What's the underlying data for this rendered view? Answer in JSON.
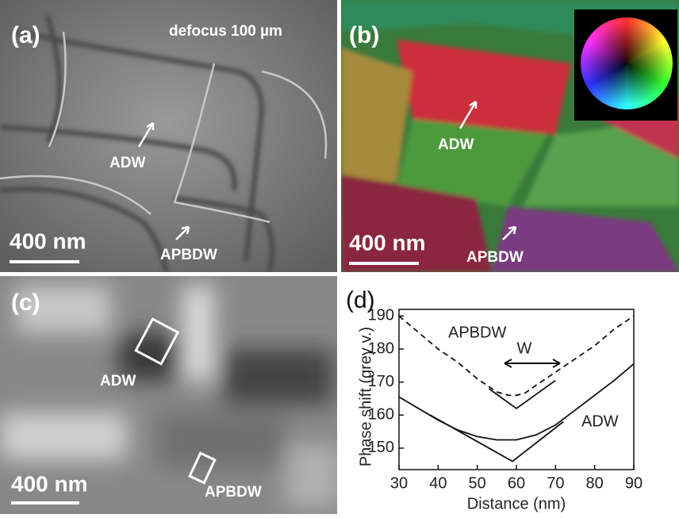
{
  "panels": [
    {
      "label": "(a)",
      "note": "defocus 100 µm",
      "adw": "ADW",
      "apbdw": "APBDW",
      "scale": "400 nm"
    },
    {
      "label": "(b)",
      "adw": "ADW",
      "apbdw": "APBDW",
      "scale": "400 nm"
    },
    {
      "label": "(c)",
      "adw": "ADW",
      "apbdw": "APBDW",
      "scale": "400 nm"
    },
    {
      "label": "(d)"
    }
  ],
  "chart_data": {
    "type": "line",
    "x_label": "Distance (nm)",
    "y_label": "Phase shift (grey v.)",
    "xlim": [
      30,
      90
    ],
    "ylim": [
      143.5,
      192
    ],
    "xticks": [
      30,
      40,
      50,
      60,
      70,
      80,
      90
    ],
    "yticks": [
      150,
      160,
      170,
      180,
      190
    ],
    "annotations": [
      "APBDW",
      "ADW",
      "W"
    ],
    "series": [
      {
        "color": "#111111",
        "dashed": true,
        "x": [
          30,
          35,
          40,
          45,
          50,
          55,
          58,
          60,
          62,
          65,
          70,
          75,
          80,
          85,
          90
        ],
        "values": [
          190,
          185,
          180,
          176,
          171,
          167,
          166,
          166,
          166.5,
          169,
          173,
          177,
          181,
          186,
          190
        ]
      },
      {
        "color": "#111111",
        "dashed": false,
        "x": [
          53,
          60,
          70
        ],
        "values": [
          168,
          162,
          170.5
        ]
      },
      {
        "color": "#111111",
        "dashed": false,
        "x": [
          30,
          35,
          40,
          45,
          50,
          55,
          60,
          65,
          70,
          75,
          80,
          85,
          90
        ],
        "values": [
          165.5,
          162,
          158.5,
          155.5,
          153.5,
          152.5,
          152.5,
          154,
          157,
          161.5,
          166,
          170.5,
          175.5
        ]
      },
      {
        "color": "#111111",
        "dashed": false,
        "x": [
          38,
          59,
          72
        ],
        "values": [
          160,
          146,
          158
        ]
      }
    ]
  }
}
